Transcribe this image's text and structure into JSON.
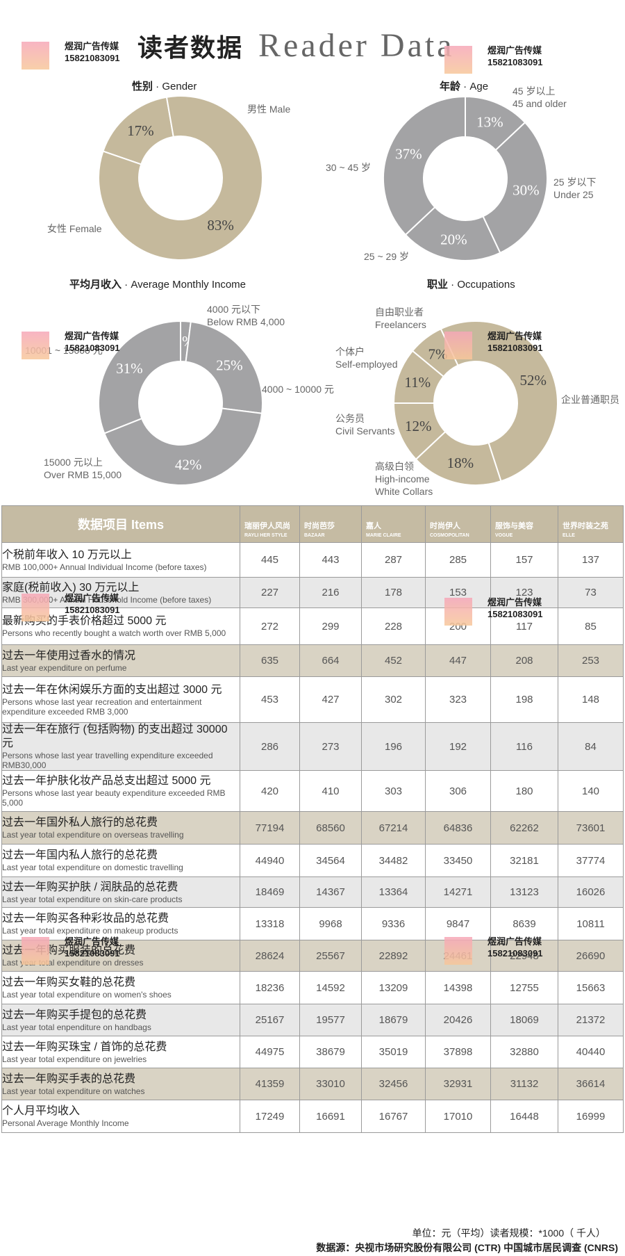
{
  "header": {
    "title_cn": "读者数据",
    "title_en": "Reader Data"
  },
  "watermark": {
    "line1": "煜润广告传媒",
    "line2": "15821083091"
  },
  "colors": {
    "tan": "#c5b99c",
    "gray": "#a3a3a5",
    "white": "#ffffff"
  },
  "chart_data": [
    {
      "type": "pie",
      "title_cn": "性别",
      "title_en": "Gender",
      "slices": [
        {
          "label_cn": "男性",
          "label_en": "Male",
          "value": 17,
          "text": "17%"
        },
        {
          "label_cn": "女性",
          "label_en": "Female",
          "value": 83,
          "text": "83%"
        }
      ]
    },
    {
      "type": "pie",
      "title_cn": "年龄",
      "title_en": "Age",
      "slices": [
        {
          "label_cn": "45 岁以上",
          "label_en": "45 and older",
          "value": 13,
          "text": "13%"
        },
        {
          "label_cn": "25 岁以下",
          "label_en": "Under 25",
          "value": 30,
          "text": "30%"
        },
        {
          "label_cn": "25 ~ 29 岁",
          "label_en": "",
          "value": 20,
          "text": "20%"
        },
        {
          "label_cn": "30 ~ 45 岁",
          "label_en": "",
          "value": 37,
          "text": "37%"
        }
      ]
    },
    {
      "type": "pie",
      "title_cn": "平均月收入",
      "title_en": "Average Monthly Income",
      "slices": [
        {
          "label_cn": "4000 元以下",
          "label_en": "Below RMB 4,000",
          "value": 2,
          "text": "2%"
        },
        {
          "label_cn": "4000 ~ 10000 元",
          "label_en": "",
          "value": 25,
          "text": "25%"
        },
        {
          "label_cn": "15000 元以上",
          "label_en": "Over RMB 15,000",
          "value": 42,
          "text": "42%"
        },
        {
          "label_cn": "10001 ~ 15000 元",
          "label_en": "",
          "value": 31,
          "text": "31%"
        }
      ]
    },
    {
      "type": "pie",
      "title_cn": "职业",
      "title_en": "Occupations",
      "slices": [
        {
          "label_cn": "企业普通职员",
          "label_en": "",
          "value": 52,
          "text": "52%"
        },
        {
          "label_cn": "高级白领",
          "label_en": "High-income White Collars",
          "value": 18,
          "text": "18%"
        },
        {
          "label_cn": "公务员",
          "label_en": "Civil Servants",
          "value": 12,
          "text": "12%"
        },
        {
          "label_cn": "个体户",
          "label_en": "Self-employed",
          "value": 11,
          "text": "11%"
        },
        {
          "label_cn": "自由职业者",
          "label_en": "Freelancers",
          "value": 7,
          "text": "7%"
        }
      ]
    },
    {
      "type": "table",
      "header_cn": "数据项目",
      "header_en": "Items",
      "magazines": [
        {
          "cn": "瑞丽伊人风尚",
          "en": "RAYLI HER STYLE"
        },
        {
          "cn": "时尚芭莎",
          "en": "BAZAAR"
        },
        {
          "cn": "嘉人",
          "en": "MARIE CLAIRE"
        },
        {
          "cn": "时尚伊人",
          "en": "COSMOPOLITAN"
        },
        {
          "cn": "服饰与美容",
          "en": "VOGUE"
        },
        {
          "cn": "世界时装之苑",
          "en": "ELLE"
        }
      ],
      "rows": [
        {
          "cn": "个税前年收入 10 万元以上",
          "en": "RMB 100,000+ Annual Individual Income (before taxes)",
          "style": "white",
          "values": [
            445,
            443,
            287,
            285,
            157,
            137
          ]
        },
        {
          "cn": "家庭(税前收入) 30 万元以上",
          "en": "RMB 300,000+ Annual Household Income (before taxes)",
          "style": "shade",
          "values": [
            227,
            216,
            178,
            153,
            123,
            73
          ]
        },
        {
          "cn": "最新购买的手表价格超过 5000 元",
          "en": "Persons who recently bought a watch worth over RMB 5,000",
          "style": "white",
          "values": [
            272,
            299,
            228,
            200,
            117,
            85
          ]
        },
        {
          "cn": "过去一年使用过香水的情况",
          "en": "Last year expenditure on perfume",
          "style": "tan",
          "values": [
            635,
            664,
            452,
            447,
            208,
            253
          ]
        },
        {
          "cn": "过去一年在休闲娱乐方面的支出超过 3000 元",
          "en": "Persons whose last year recreation and entertainment expenditure exceeded RMB 3,000",
          "style": "white",
          "values": [
            453,
            427,
            302,
            323,
            198,
            148
          ]
        },
        {
          "cn": "过去一年在旅行 (包括购物) 的支出超过 30000 元",
          "en": "Persons whose last year travelling expenditure exceeded RMB30,000",
          "style": "shade",
          "values": [
            286,
            273,
            196,
            192,
            116,
            84
          ]
        },
        {
          "cn": "过去一年护肤化妆产品总支出超过 5000 元",
          "en": "Persons whose last year beauty expenditure exceeded RMB 5,000",
          "style": "white",
          "values": [
            420,
            410,
            303,
            306,
            180,
            140
          ]
        },
        {
          "cn": "过去一年国外私人旅行的总花费",
          "en": "Last year total expenditure on overseas travelling",
          "style": "tan",
          "values": [
            77194,
            68560,
            67214,
            64836,
            62262,
            73601
          ]
        },
        {
          "cn": "过去一年国内私人旅行的总花费",
          "en": "Last year total expenditure on domestic travelling",
          "style": "white",
          "values": [
            44940,
            34564,
            34482,
            33450,
            32181,
            37774
          ]
        },
        {
          "cn": "过去一年购买护肤 / 润肤品的总花费",
          "en": "Last year total expenditure on skin-care products",
          "style": "shade",
          "values": [
            18469,
            14367,
            13364,
            14271,
            13123,
            16026
          ]
        },
        {
          "cn": "过去一年购买各种彩妆品的总花费",
          "en": "Last year total expenditure on makeup products",
          "style": "white",
          "values": [
            13318,
            9968,
            9336,
            9847,
            8639,
            10811
          ]
        },
        {
          "cn": "过去一年购买服装的总花费",
          "en": "Last year total expenditure on dresses",
          "style": "tan",
          "values": [
            28624,
            25567,
            22892,
            24461,
            22948,
            26690
          ]
        },
        {
          "cn": "过去一年购买女鞋的总花费",
          "en": "Last year total expenditure on women's shoes",
          "style": "white",
          "values": [
            18236,
            14592,
            13209,
            14398,
            12755,
            15663
          ]
        },
        {
          "cn": "过去一年购买手提包的总花费",
          "en": "Last year total enpenditure on handbags",
          "style": "shade",
          "values": [
            25167,
            19577,
            18679,
            20426,
            18069,
            21372
          ]
        },
        {
          "cn": "过去一年购买珠宝 / 首饰的总花费",
          "en": "Last year total expenditure on jewelries",
          "style": "white",
          "values": [
            44975,
            38679,
            35019,
            37898,
            32880,
            40440
          ]
        },
        {
          "cn": "过去一年购买手表的总花费",
          "en": "Last year total expenditure on watches",
          "style": "tan",
          "values": [
            41359,
            33010,
            32456,
            32931,
            31132,
            36614
          ]
        },
        {
          "cn": "个人月平均收入",
          "en": "Personal Average Monthly  Income",
          "style": "white",
          "values": [
            17249,
            16691,
            16767,
            17010,
            16448,
            16999
          ]
        }
      ]
    }
  ],
  "footer": {
    "unit": "单位：元（平均）读者规模：*1000（ 千人）",
    "source": "数据源：央视市场研究股份有限公司 (CTR) 中国城市居民调查 (CNRS)"
  }
}
